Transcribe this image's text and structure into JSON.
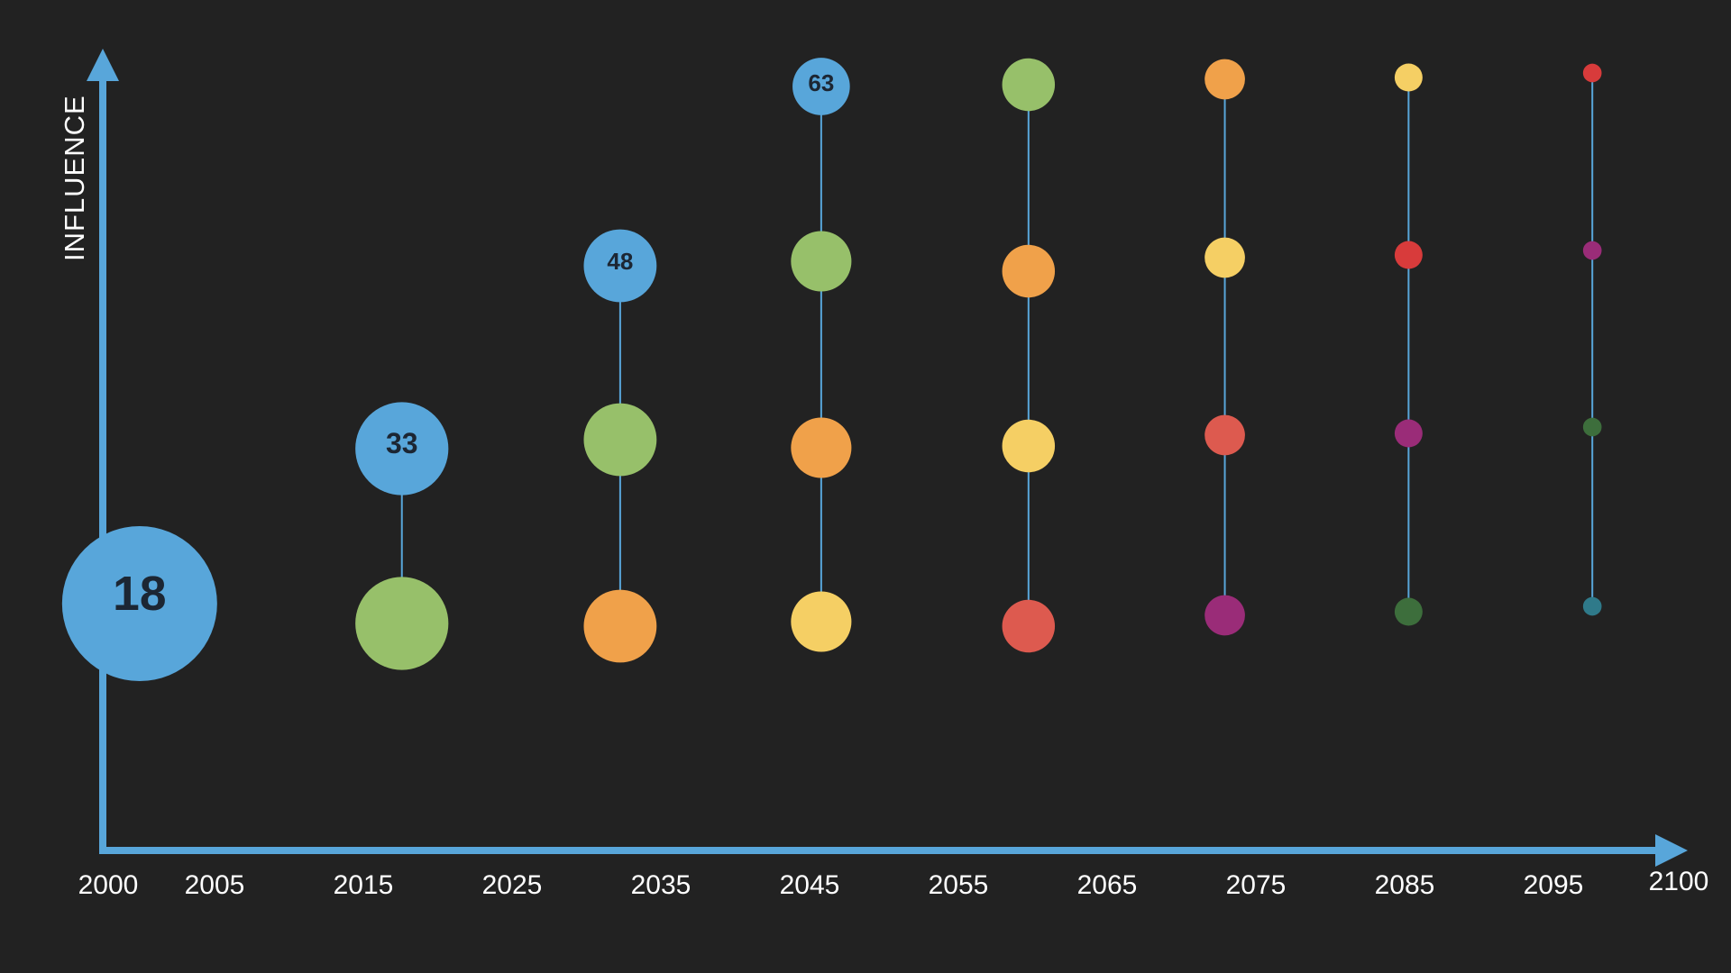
{
  "chart_data": {
    "type": "scatter",
    "ylabel": "INFLUENCE",
    "xlabel": "",
    "x_ticks": [
      "2000",
      "2005",
      "2015",
      "2025",
      "2035",
      "2045",
      "2055",
      "2065",
      "2075",
      "2085",
      "2095",
      "2100"
    ],
    "xlim": [
      2000,
      2100
    ],
    "grid": false,
    "colors": {
      "background": "#222222",
      "axis": "#58a6da",
      "connector": "#58a6da",
      "blue": "#58a6da",
      "green": "#97c06a",
      "orange": "#f0a14a",
      "yellow": "#f5cf64",
      "red": "#dd5a4f",
      "bright_red": "#d83b3b",
      "purple": "#9a2c78",
      "dark_green": "#3d6e3c",
      "teal": "#2f7a8a",
      "label_text": "#1c2633"
    },
    "columns": [
      {
        "x": 2002,
        "points": [
          {
            "level": 0,
            "color": "blue",
            "label": "18",
            "size": 1.0
          }
        ]
      },
      {
        "x": 2018.7,
        "points": [
          {
            "level": 0,
            "color": "green",
            "size": 0.6
          },
          {
            "level": 1,
            "color": "blue",
            "label": "33",
            "size": 0.6
          }
        ]
      },
      {
        "x": 2032.6,
        "points": [
          {
            "level": 0,
            "color": "orange",
            "size": 0.47
          },
          {
            "level": 1,
            "color": "green",
            "size": 0.47
          },
          {
            "level": 2,
            "color": "blue",
            "label": "48",
            "size": 0.47
          }
        ]
      },
      {
        "x": 2045.4,
        "points": [
          {
            "level": 0,
            "color": "yellow",
            "size": 0.39
          },
          {
            "level": 1,
            "color": "orange",
            "size": 0.39
          },
          {
            "level": 2,
            "color": "green",
            "size": 0.39
          },
          {
            "level": 3,
            "color": "blue",
            "label": "63",
            "size": 0.37
          }
        ]
      },
      {
        "x": 2058.6,
        "points": [
          {
            "level": 0,
            "color": "red",
            "size": 0.34
          },
          {
            "level": 1,
            "color": "yellow",
            "size": 0.34
          },
          {
            "level": 2,
            "color": "orange",
            "size": 0.34
          },
          {
            "level": 3,
            "color": "green",
            "size": 0.34
          }
        ]
      },
      {
        "x": 2071.1,
        "points": [
          {
            "level": 0,
            "color": "purple",
            "size": 0.26
          },
          {
            "level": 1,
            "color": "red",
            "size": 0.26
          },
          {
            "level": 2,
            "color": "yellow",
            "size": 0.26
          },
          {
            "level": 3,
            "color": "orange",
            "size": 0.26
          }
        ]
      },
      {
        "x": 2082.8,
        "points": [
          {
            "level": 0,
            "color": "dark_green",
            "size": 0.18
          },
          {
            "level": 1,
            "color": "purple",
            "size": 0.18
          },
          {
            "level": 2,
            "color": "bright_red",
            "size": 0.18
          },
          {
            "level": 3,
            "color": "yellow",
            "size": 0.18
          }
        ]
      },
      {
        "x": 2094.5,
        "points": [
          {
            "level": 0,
            "color": "teal",
            "size": 0.12
          },
          {
            "level": 1,
            "color": "dark_green",
            "size": 0.12
          },
          {
            "level": 2,
            "color": "purple",
            "size": 0.12
          },
          {
            "level": 3,
            "color": "bright_red",
            "size": 0.12
          }
        ]
      }
    ]
  }
}
